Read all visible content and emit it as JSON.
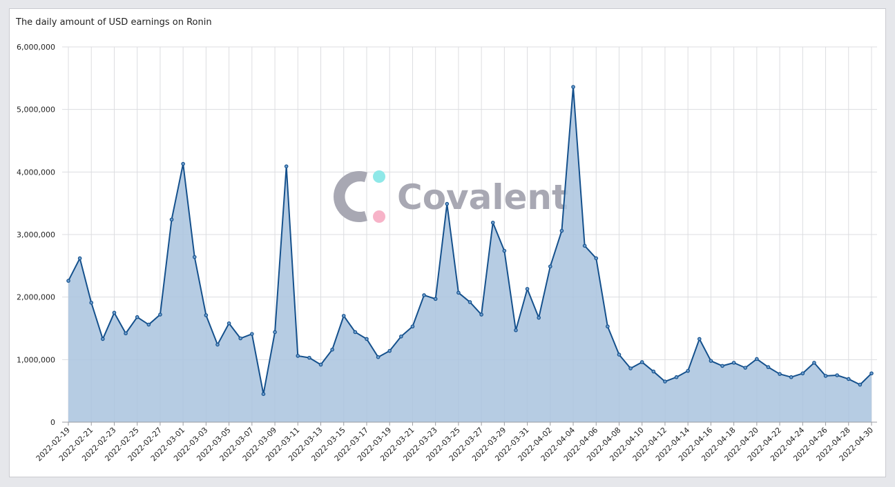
{
  "title": "The daily amount of USD earnings on Ronin",
  "watermark": {
    "text": "Covalent",
    "ring_color": "#a8a8b3",
    "dot_top_color": "#8fe8e8",
    "dot_bottom_color": "#f7b3c8"
  },
  "colors": {
    "line": "#14508c",
    "fill": "#a9c3de",
    "grid": "#dcdde0"
  },
  "chart_data": {
    "type": "area",
    "title": "The daily amount of USD earnings on Ronin",
    "xlabel": "",
    "ylabel": "",
    "ylim": [
      0,
      6000000
    ],
    "y_ticks": [
      0,
      1000000,
      2000000,
      3000000,
      4000000,
      5000000,
      6000000
    ],
    "y_tick_labels": [
      "0",
      "1,000,000",
      "2,000,000",
      "3,000,000",
      "4,000,000",
      "5,000,000",
      "6,000,000"
    ],
    "x_tick_labels": [
      "2022-02-19",
      "2022-02-21",
      "2022-02-23",
      "2022-02-25",
      "2022-02-27",
      "2022-03-01",
      "2022-03-03",
      "2022-03-05",
      "2022-03-07",
      "2022-03-09",
      "2022-03-11",
      "2022-03-13",
      "2022-03-15",
      "2022-03-17",
      "2022-03-19",
      "2022-03-21",
      "2022-03-23",
      "2022-03-25",
      "2022-03-27",
      "2022-03-29",
      "2022-03-31",
      "2022-04-02",
      "2022-04-04",
      "2022-04-06",
      "2022-04-08",
      "2022-04-10",
      "2022-04-12",
      "2022-04-14",
      "2022-04-16",
      "2022-04-18",
      "2022-04-20",
      "2022-04-22",
      "2022-04-24",
      "2022-04-26",
      "2022-04-28",
      "2022-04-30"
    ],
    "grid": true,
    "legend": "none",
    "x": [
      "2022-02-19",
      "2022-02-20",
      "2022-02-21",
      "2022-02-22",
      "2022-02-23",
      "2022-02-24",
      "2022-02-25",
      "2022-02-26",
      "2022-02-27",
      "2022-02-28",
      "2022-03-01",
      "2022-03-02",
      "2022-03-03",
      "2022-03-04",
      "2022-03-05",
      "2022-03-06",
      "2022-03-07",
      "2022-03-08",
      "2022-03-09",
      "2022-03-10",
      "2022-03-11",
      "2022-03-12",
      "2022-03-13",
      "2022-03-14",
      "2022-03-15",
      "2022-03-16",
      "2022-03-17",
      "2022-03-18",
      "2022-03-19",
      "2022-03-20",
      "2022-03-21",
      "2022-03-22",
      "2022-03-23",
      "2022-03-24",
      "2022-03-25",
      "2022-03-26",
      "2022-03-27",
      "2022-03-28",
      "2022-03-29",
      "2022-03-30",
      "2022-03-31",
      "2022-04-01",
      "2022-04-02",
      "2022-04-03",
      "2022-04-04",
      "2022-04-05",
      "2022-04-06",
      "2022-04-07",
      "2022-04-08",
      "2022-04-09",
      "2022-04-10",
      "2022-04-11",
      "2022-04-12",
      "2022-04-13",
      "2022-04-14",
      "2022-04-15",
      "2022-04-16",
      "2022-04-17",
      "2022-04-18",
      "2022-04-19",
      "2022-04-20",
      "2022-04-21",
      "2022-04-22",
      "2022-04-23",
      "2022-04-24",
      "2022-04-25",
      "2022-04-26",
      "2022-04-27",
      "2022-04-28",
      "2022-04-29",
      "2022-04-30"
    ],
    "series": [
      {
        "values": [
          2260000,
          2620000,
          1910000,
          1330000,
          1750000,
          1420000,
          1680000,
          1560000,
          1720000,
          3240000,
          4130000,
          2640000,
          1710000,
          1240000,
          1580000,
          1340000,
          1410000,
          450000,
          1440000,
          4090000,
          1060000,
          1030000,
          920000,
          1160000,
          1700000,
          1440000,
          1330000,
          1040000,
          1140000,
          1370000,
          1530000,
          2030000,
          1970000,
          3490000,
          2070000,
          1920000,
          1720000,
          3190000,
          2740000,
          1470000,
          2130000,
          1670000,
          2490000,
          3060000,
          5360000,
          2820000,
          2620000,
          1530000,
          1080000,
          860000,
          960000,
          810000,
          650000,
          720000,
          820000,
          1330000,
          980000,
          900000,
          950000,
          870000,
          1010000,
          880000,
          770000,
          720000,
          780000,
          950000,
          740000,
          750000,
          690000,
          600000,
          780000
        ]
      }
    ]
  }
}
